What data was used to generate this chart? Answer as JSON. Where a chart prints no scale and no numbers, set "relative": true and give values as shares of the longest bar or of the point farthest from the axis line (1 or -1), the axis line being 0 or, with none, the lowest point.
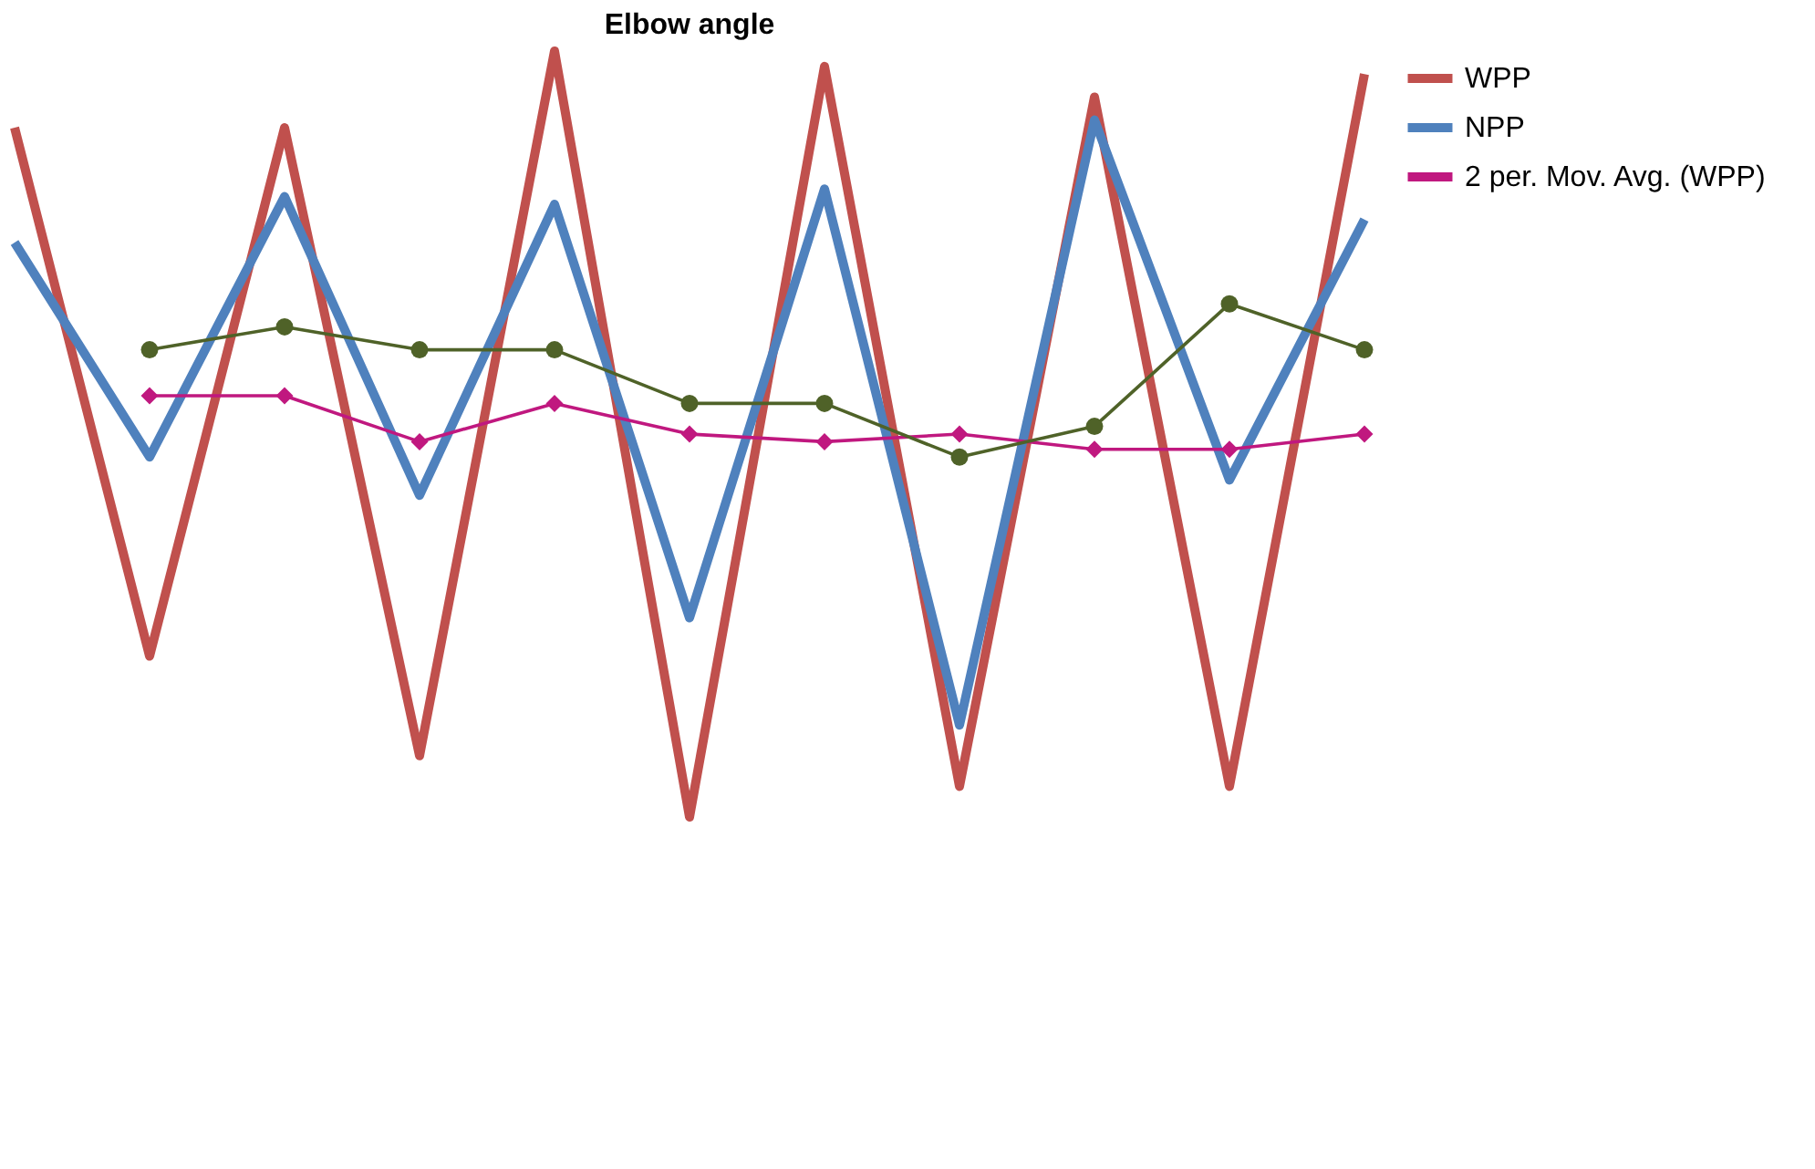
{
  "chart_data": {
    "type": "line",
    "title": "Elbow angle",
    "relative": true,
    "legend": "right",
    "categories": [
      null,
      null,
      null,
      null,
      null,
      null,
      null,
      null,
      null,
      null,
      null
    ],
    "series": [
      {
        "name": "WPP",
        "color": "#c0504d",
        "marker": "none",
        "values": [
          0.9,
          0.21,
          0.9,
          0.08,
          1.0,
          0.0,
          0.98,
          0.04,
          0.94,
          0.04,
          0.97
        ]
      },
      {
        "name": "NPP",
        "color": "#4f81bd",
        "marker": "none",
        "values": [
          0.75,
          0.47,
          0.81,
          0.42,
          0.8,
          0.26,
          0.82,
          0.12,
          0.91,
          0.44,
          0.78
        ]
      },
      {
        "name": "2 per. Mov. Avg. (WPP)",
        "color": "#c0187f",
        "marker": "diamond",
        "values": [
          null,
          0.55,
          0.55,
          0.49,
          0.54,
          0.5,
          0.49,
          0.5,
          0.48,
          0.48,
          0.5
        ]
      },
      {
        "color": "#4f6228",
        "marker": "circle",
        "values": [
          null,
          0.61,
          0.64,
          0.61,
          0.61,
          0.54,
          0.54,
          0.47,
          0.51,
          0.67,
          0.61
        ]
      }
    ]
  }
}
